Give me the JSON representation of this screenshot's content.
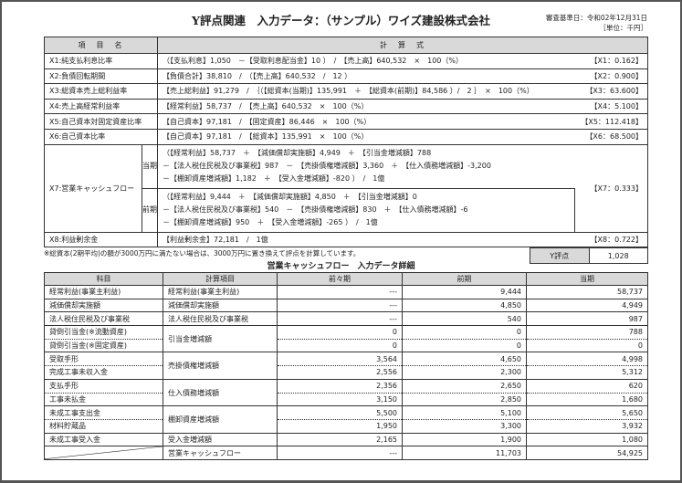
{
  "title": "Y評点関連　入力データ：（サンプル）ワイズ建設株式会社",
  "review_date": "審査基準日：令和02年12月31日",
  "unit": "［単位：千円］",
  "main_table": {
    "headers": [
      "項　目　名",
      "計　算　式"
    ],
    "rows": [
      {
        "label": "X1:純支払利息比率",
        "formula": "（【支払利息】1,050　－【受取利息配当金】10 ）　/　【売上高】640,532　×　100（%）",
        "result": "【X1：0.162】"
      },
      {
        "label": "X2:負債回転期間",
        "formula": "【負債合計】38,810　/　（【売上高】640,532　/　12 ）",
        "result": "【X2：0.900】"
      },
      {
        "label": "X3:総資本売上総利益率",
        "formula": "【売上総利益】91,279　/　｛（【総資本(当期)】135,991　＋　【総資本(前期)】84,586 ）/　2 ｝　×　100（%）",
        "result": "【X3：63.600】"
      },
      {
        "label": "X4:売上高経常利益率",
        "formula": "【経常利益】58,737　/　【売上高】640,532　×　100（%）",
        "result": "【X4：5.100】"
      },
      {
        "label": "X5:自己資本対固定資産比率",
        "formula": "【自己資本】97,181　/　【固定資産】86,446　×　100（%）",
        "result": "【X5：112.418】"
      },
      {
        "label": "X6:自己資本比率",
        "formula": "【自己資本】97,181　/　【総資本】135,991　×　100（%）",
        "result": "【X6：68.500】"
      }
    ],
    "x7": {
      "label": "X7:営業キャッシュフロー",
      "result": "【X7：0.333】",
      "current": {
        "label": "当期",
        "lines": [
          "（【経常利益】58,737　＋　【減価償却実施額】4,949　＋　【引当金増減額】788",
          "－【法人税住民税及び事業税】987　－　【売掛債権増減額】3,360　＋　【仕入債務増減額】-3,200",
          "－【棚卸資産増減額】1,182　＋　【受入金増減額】-820 ）　/　1億"
        ]
      },
      "previous": {
        "label": "前期",
        "lines": [
          "（【経常利益】9,444　＋　【減価償却実施額】4,850　＋　【引当金増減額】0",
          "－【法人税住民税及び事業税】540　－　【売掛債権増減額】830　＋　【仕入債務増減額】-6",
          "－【棚卸資産増減額】950　＋　【受入金増減額】-265 ）　/　1億"
        ]
      }
    },
    "x8": {
      "label": "X8:利益剰余金",
      "formula": "【利益剰余金】72,181　/　1億",
      "result": "【X8：0.722】"
    }
  },
  "note": "※総資本(2期平均)の額が3000万円に満たない場合は、3000万円に置き換えて評点を計算しています。",
  "y_score": {
    "label": "Y評点",
    "value": "1,028"
  },
  "cf_table": {
    "title": "営業キャッシュフロー　入力データ詳細",
    "headers": [
      "科目",
      "計算項目",
      "前々期",
      "前期",
      "当期"
    ],
    "rows": [
      {
        "subject": "経常利益(事業主利益)",
        "item": "経常利益(事業主利益)",
        "pp": "---",
        "p": "9,444",
        "c": "58,737"
      },
      {
        "subject": "減価償却実施額",
        "item": "減価償却実施額",
        "pp": "---",
        "p": "4,850",
        "c": "4,949"
      },
      {
        "subject": "法人税住民税及び事業税",
        "item": "法人税住民税及び事業税",
        "pp": "---",
        "p": "540",
        "c": "987"
      },
      {
        "subject": "貸倒引当金(※流動資産)",
        "item": "引当金増減額",
        "pp": "0",
        "p": "0",
        "c": "788"
      },
      {
        "subject": "貸倒引当金(※固定資産)",
        "pp": "0",
        "p": "0",
        "c": "0"
      },
      {
        "subject": "受取手形",
        "item": "売掛債権増減額",
        "pp": "3,564",
        "p": "4,650",
        "c": "4,998"
      },
      {
        "subject": "完成工事未収入金",
        "pp": "2,556",
        "p": "2,300",
        "c": "5,312"
      },
      {
        "subject": "支払手形",
        "item": "仕入債務増減額",
        "pp": "2,356",
        "p": "2,650",
        "c": "620"
      },
      {
        "subject": "工事未払金",
        "pp": "3,150",
        "p": "2,850",
        "c": "1,680"
      },
      {
        "subject": "未成工事支出金",
        "item": "棚卸資産増減額",
        "pp": "5,500",
        "p": "5,100",
        "c": "5,650"
      },
      {
        "subject": "材料貯蔵品",
        "pp": "1,950",
        "p": "3,300",
        "c": "3,932"
      },
      {
        "subject": "未成工事受入金",
        "item": "受入金増減額",
        "pp": "2,165",
        "p": "1,900",
        "c": "1,080"
      },
      {
        "subject": "",
        "item": "営業キャッシュフロー",
        "pp": "---",
        "p": "11,703",
        "c": "54,925"
      }
    ]
  }
}
